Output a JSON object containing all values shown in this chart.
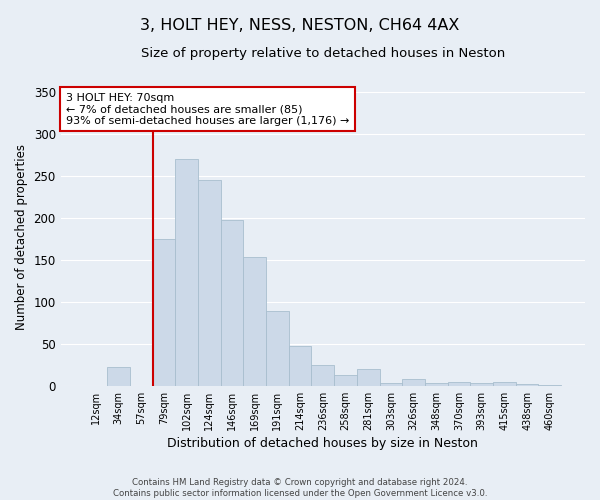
{
  "title": "3, HOLT HEY, NESS, NESTON, CH64 4AX",
  "subtitle": "Size of property relative to detached houses in Neston",
  "xlabel": "Distribution of detached houses by size in Neston",
  "ylabel": "Number of detached properties",
  "categories": [
    "12sqm",
    "34sqm",
    "57sqm",
    "79sqm",
    "102sqm",
    "124sqm",
    "146sqm",
    "169sqm",
    "191sqm",
    "214sqm",
    "236sqm",
    "258sqm",
    "281sqm",
    "303sqm",
    "326sqm",
    "348sqm",
    "370sqm",
    "393sqm",
    "415sqm",
    "438sqm",
    "460sqm"
  ],
  "values": [
    0,
    23,
    0,
    175,
    270,
    245,
    198,
    153,
    89,
    48,
    25,
    13,
    20,
    3,
    8,
    3,
    4,
    3,
    4,
    2,
    1
  ],
  "bar_color": "#ccd9e8",
  "bar_edge_color": "#a8bece",
  "vline_color": "#cc0000",
  "vline_position": 2.5,
  "ylim": [
    0,
    355
  ],
  "yticks": [
    0,
    50,
    100,
    150,
    200,
    250,
    300,
    350
  ],
  "annotation_title": "3 HOLT HEY: 70sqm",
  "annotation_line1": "← 7% of detached houses are smaller (85)",
  "annotation_line2": "93% of semi-detached houses are larger (1,176) →",
  "annotation_box_color": "#ffffff",
  "annotation_box_edge": "#cc0000",
  "footer_line1": "Contains HM Land Registry data © Crown copyright and database right 2024.",
  "footer_line2": "Contains public sector information licensed under the Open Government Licence v3.0.",
  "background_color": "#e8eef5",
  "grid_color": "#ffffff"
}
